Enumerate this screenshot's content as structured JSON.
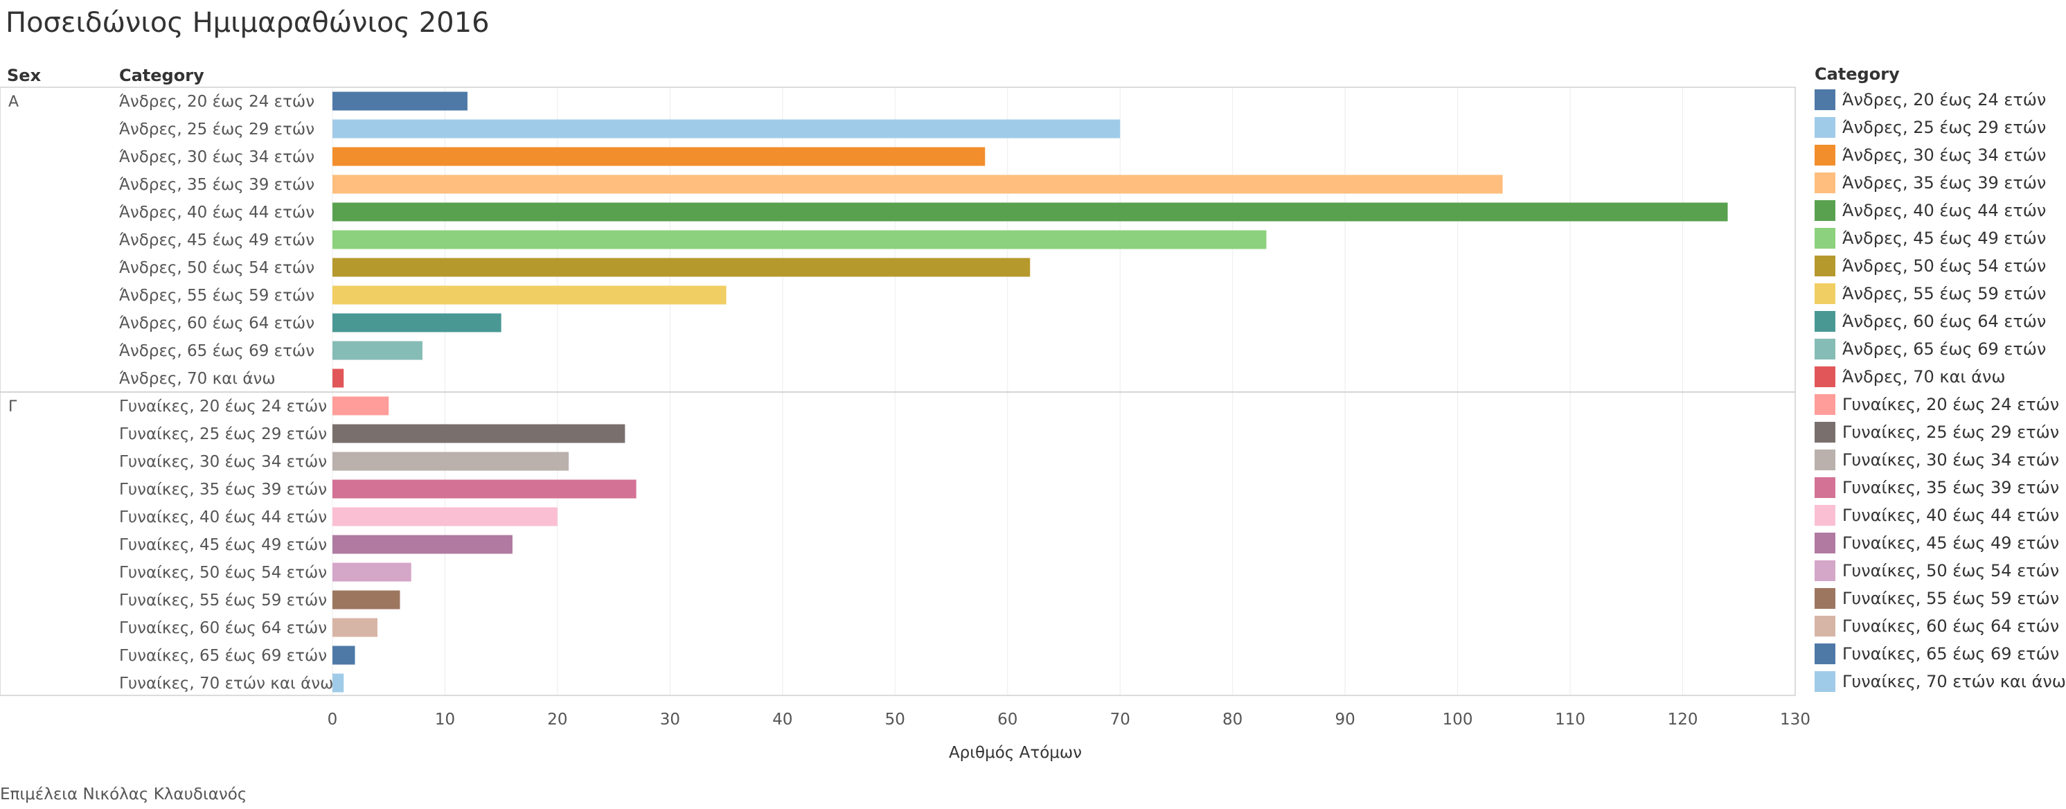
{
  "title": "Ποσειδώνιος Ημιμαραθώνιος 2016",
  "credit": "Επιμέλεια Νικόλας Κλαυδιανός",
  "chart_data": {
    "type": "bar",
    "orientation": "horizontal",
    "row_headers": [
      "Sex",
      "Category"
    ],
    "xlabel": "Αριθμός Ατόμων",
    "xlim": [
      0,
      130
    ],
    "xticks": [
      0,
      10,
      20,
      30,
      40,
      50,
      60,
      70,
      80,
      90,
      100,
      110,
      120,
      130
    ],
    "grid": true,
    "legend_title": "Category",
    "legend_position": "right",
    "groups": [
      {
        "sex": "Α",
        "bars": [
          {
            "category": "Άνδρες, 20 έως 24 ετών",
            "value": 12,
            "color": "#4e79a7"
          },
          {
            "category": "Άνδρες, 25 έως 29 ετών",
            "value": 70,
            "color": "#a0cbe8"
          },
          {
            "category": "Άνδρες, 30 έως 34 ετών",
            "value": 58,
            "color": "#f28e2b"
          },
          {
            "category": "Άνδρες, 35 έως 39 ετών",
            "value": 104,
            "color": "#ffbe7d"
          },
          {
            "category": "Άνδρες, 40 έως 44 ετών",
            "value": 124,
            "color": "#59a14f"
          },
          {
            "category": "Άνδρες, 45 έως 49 ετών",
            "value": 83,
            "color": "#8cd17d"
          },
          {
            "category": "Άνδρες, 50 έως 54 ετών",
            "value": 62,
            "color": "#b6992d"
          },
          {
            "category": "Άνδρες, 55 έως 59 ετών",
            "value": 35,
            "color": "#f1ce63"
          },
          {
            "category": "Άνδρες, 60 έως 64 ετών",
            "value": 15,
            "color": "#499894"
          },
          {
            "category": "Άνδρες, 65 έως 69 ετών",
            "value": 8,
            "color": "#86bcb6"
          },
          {
            "category": "Άνδρες, 70 και άνω",
            "value": 1,
            "color": "#e15759"
          }
        ]
      },
      {
        "sex": "Γ",
        "bars": [
          {
            "category": "Γυναίκες, 20 έως 24 ετών",
            "value": 5,
            "color": "#ff9d9a"
          },
          {
            "category": "Γυναίκες, 25 έως 29 ετών",
            "value": 26,
            "color": "#79706e"
          },
          {
            "category": "Γυναίκες, 30 έως 34 ετών",
            "value": 21,
            "color": "#bab0ac"
          },
          {
            "category": "Γυναίκες, 35 έως 39 ετών",
            "value": 27,
            "color": "#d37295"
          },
          {
            "category": "Γυναίκες, 40 έως 44 ετών",
            "value": 20,
            "color": "#fabfd2"
          },
          {
            "category": "Γυναίκες, 45 έως 49 ετών",
            "value": 16,
            "color": "#b07aa1"
          },
          {
            "category": "Γυναίκες, 50 έως 54 ετών",
            "value": 7,
            "color": "#d4a6c8"
          },
          {
            "category": "Γυναίκες, 55 έως 59 ετών",
            "value": 6,
            "color": "#9d7660"
          },
          {
            "category": "Γυναίκες, 60 έως 64 ετών",
            "value": 4,
            "color": "#d7b5a6"
          },
          {
            "category": "Γυναίκες, 65 έως 69 ετών",
            "value": 2,
            "color": "#4e79a7"
          },
          {
            "category": "Γυναίκες, 70 ετών και άνω",
            "value": 1,
            "color": "#a0cbe8"
          }
        ]
      }
    ]
  }
}
